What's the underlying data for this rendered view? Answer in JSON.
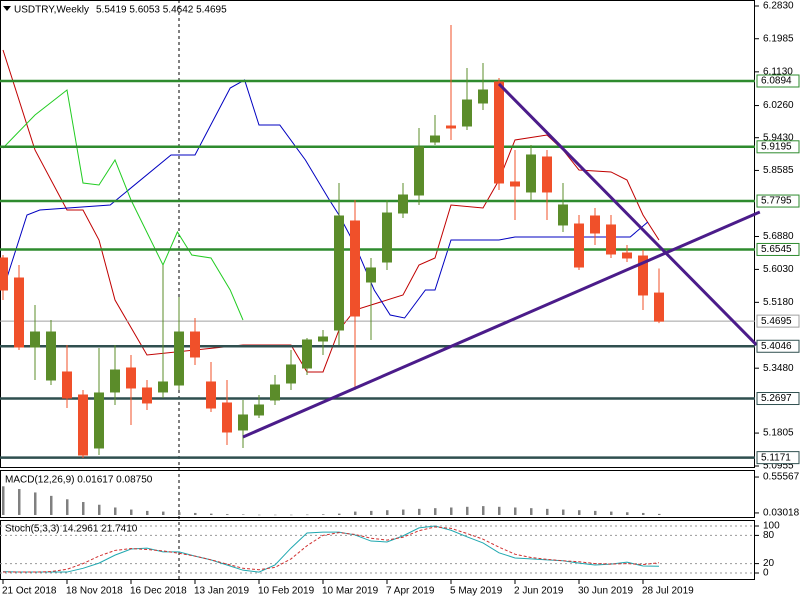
{
  "chart_data": [
    {
      "type": "candlestick",
      "title": "USDTRY,Weekly",
      "subtitle": "5.5419 5.6053 5.4642 5.4695",
      "categories": [
        "21 Oct 2018",
        null,
        null,
        null,
        "18 Nov 2018",
        null,
        null,
        null,
        "16 Dec 2018",
        null,
        null,
        null,
        "13 Jan 2019",
        null,
        null,
        null,
        "10 Feb 2019",
        null,
        null,
        null,
        "10 Mar 2019",
        null,
        null,
        null,
        "7 Apr 2019",
        null,
        null,
        null,
        "5 May 2019",
        null,
        null,
        null,
        "2 Jun 2019",
        null,
        null,
        null,
        "30 Jun 2019",
        null,
        null,
        null,
        "28 Jul 2019",
        null
      ],
      "open": [
        5.6325,
        5.5808,
        5.4027,
        5.3175,
        5.3382,
        5.2788,
        5.142,
        5.2866,
        5.3485,
        5.2969,
        5.2866,
        5.3046,
        5.4414,
        5.3124,
        5.2582,
        5.1885,
        5.2272,
        5.2659,
        5.3098,
        5.3485,
        5.4182,
        5.4466,
        5.728,
        5.5705,
        5.6221,
        5.7486,
        5.7951,
        5.9319,
        5.9732,
        5.9732,
        6.0326,
        6.0868,
        5.8287,
        5.8029,
        5.8932,
        5.7177,
        5.7202,
        5.7409,
        5.7177,
        5.6454,
        5.6376,
        5.5419
      ],
      "high": [
        5.6402,
        5.6144,
        5.5111,
        5.4724,
        5.4079,
        5.2917,
        5.4001,
        5.4079,
        5.3821,
        5.3175,
        5.6144,
        5.5318,
        5.4776,
        5.364,
        5.3175,
        5.2659,
        5.2788,
        5.3304,
        5.395,
        5.426,
        5.4466,
        5.8261,
        5.7822,
        5.6325,
        5.7822,
        5.8261,
        5.9681,
        6.0016,
        6.234,
        6.123,
        6.1359,
        6.0971,
        5.9113,
        5.9242,
        5.9113,
        5.8261,
        5.7435,
        5.7615,
        5.7435,
        5.666,
        5.6531,
        5.6053
      ],
      "low": [
        5.524,
        5.395,
        5.3175,
        5.3046,
        5.2452,
        5.1162,
        5.1239,
        5.253,
        5.2014,
        5.2401,
        5.2711,
        5.2917,
        5.3563,
        5.2349,
        5.1497,
        5.142,
        5.2194,
        5.253,
        5.2917,
        5.3304,
        5.3821,
        5.4079,
        5.2917,
        5.4208,
        5.6015,
        5.7357,
        5.7693,
        5.9242,
        5.9371,
        5.9629,
        6.0145,
        5.808,
        5.7306,
        5.7822,
        5.7306,
        5.6996,
        5.6015,
        5.666,
        5.6325,
        5.6221,
        5.4982,
        5.4642
      ],
      "close": [
        5.5499,
        5.4027,
        5.4414,
        5.4414,
        5.2711,
        5.1239,
        5.284,
        5.3433,
        5.2969,
        5.2582,
        5.3124,
        5.4414,
        5.3769,
        5.2452,
        5.1833,
        5.2272,
        5.253,
        5.3046,
        5.3563,
        5.4208,
        5.4285,
        5.7409,
        5.4827,
        5.6067,
        5.7486,
        5.7951,
        5.919,
        5.9474,
        5.9681,
        6.0403,
        6.0662,
        5.8261,
        5.8183,
        5.8984,
        5.8029,
        5.7693,
        5.6092,
        5.697,
        5.6428,
        5.6325,
        5.537,
        5.4695
      ],
      "up_color": "#5b8c2a",
      "down_color": "#f0502a",
      "ylim": [
        5.0955,
        6.283
      ],
      "yticks": [
        {
          "value": 6.283,
          "label": "6.2830"
        },
        6.1985,
        {
          "value": 6.113,
          "label": "6.1130"
        },
        {
          "value": 6.026,
          "label": "6.0260"
        },
        {
          "value": 5.943,
          "label": "5.9430"
        },
        5.8585,
        {
          "value": 5.688,
          "label": "5.6880"
        },
        {
          "value": 5.603,
          "label": "5.6030"
        },
        {
          "value": 5.518,
          "label": "5.5180"
        },
        {
          "value": 5.348,
          "label": "5.3480"
        },
        5.1805,
        5.0955
      ],
      "levels": [
        6.0894,
        5.9195,
        5.7795,
        5.6545,
        5.4046,
        5.2697,
        5.1171
      ],
      "level_colors": [
        "#2e8b2e",
        "#2e8b2e",
        "#2e8b2e",
        "#2e8b2e",
        "#2f4f4f",
        "#2f4f4f",
        "#2f4f4f"
      ],
      "last_price": 5.4695,
      "last_color": "#a0a0a0",
      "lines": [
        {
          "color": "#c00000",
          "x": [
            0,
            2,
            4,
            5,
            6,
            7,
            9,
            15,
            18,
            19,
            20,
            21,
            22,
            25,
            26,
            27,
            28,
            30,
            31,
            32,
            34,
            35,
            36,
            38,
            39,
            40,
            41
          ],
          "values": [
            6.1694,
            5.9113,
            5.7564,
            5.7564,
            5.6789,
            5.524,
            5.3821,
            5.4079,
            5.4079,
            5.3382,
            5.3382,
            5.4466,
            5.4982,
            5.537,
            5.6144,
            5.6325,
            5.7693,
            5.7615,
            5.8338,
            5.9371,
            5.95,
            5.9113,
            5.8596,
            5.8545,
            5.8338,
            5.7435,
            5.6789
          ]
        },
        {
          "color": "#0000c0",
          "x": [
            0,
            1.5,
            2.3,
            6.7,
            10.5,
            12,
            14.2,
            15.1,
            16,
            17.3,
            18.9,
            20.4,
            21,
            22,
            23.2,
            24.2,
            25.1,
            26.4,
            27,
            28,
            31,
            32,
            39.2,
            40.3
          ],
          "values": [
            5.5499,
            5.7435,
            5.7564,
            5.7693,
            5.8984,
            5.8984,
            6.0713,
            6.092,
            5.9758,
            5.9758,
            5.8855,
            5.7822,
            5.7435,
            5.666,
            5.5499,
            5.4853,
            5.4776,
            5.5499,
            5.5499,
            5.6789,
            5.6789,
            5.6867,
            5.6867,
            5.7254
          ]
        },
        {
          "color": "#22cc22",
          "x": [
            0,
            2,
            4,
            5,
            6,
            7,
            8,
            10,
            10.9,
            11.8,
            13,
            14.2,
            15
          ],
          "values": [
            5.9164,
            6.0016,
            6.0662,
            5.8261,
            5.8209,
            5.8855,
            5.7822,
            5.6144,
            5.6996,
            5.6402,
            5.6325,
            5.5499,
            5.4724
          ]
        }
      ],
      "trendlines": [
        {
          "color": "#4b1c8a",
          "x": [
            15,
            47.3
          ],
          "values": [
            5.1704,
            5.7512
          ]
        },
        {
          "color": "#4b1c8a",
          "x": [
            31,
            47.1
          ],
          "values": [
            6.0817,
            5.4079
          ]
        }
      ]
    },
    {
      "type": "bar",
      "title": "MACD(12,26,9) 0.01617 0.08750",
      "values": [
        0.42,
        0.38,
        0.33,
        0.28,
        0.23,
        0.19,
        0.15,
        0.11,
        0.08,
        0.06,
        0.05,
        0.04,
        0.03,
        0.02,
        0.012,
        0.008,
        0.004,
        0.004,
        0.004,
        0.006,
        0.01,
        0.02,
        0.05,
        0.06,
        0.07,
        0.08,
        0.09,
        0.1,
        0.11,
        0.12,
        0.13,
        0.12,
        0.11,
        0.1,
        0.09,
        0.08,
        0.07,
        0.06,
        0.05,
        0.04,
        0.03,
        0.01617
      ],
      "color": "#808080",
      "ylim": [
        0,
        0.6
      ],
      "yticks": [
        0.55567,
        0.03018
      ]
    },
    {
      "type": "line",
      "title": "Stoch(5,3,3) 14.2961 21.7410",
      "series": [
        {
          "color": "#20a8b0",
          "dashed": false,
          "values": [
            3,
            2,
            2,
            2,
            2,
            10,
            21,
            38,
            51,
            53,
            45,
            45,
            36,
            28,
            17,
            6,
            2,
            17,
            53,
            85,
            87,
            87,
            81,
            68,
            66,
            79,
            96,
            100,
            91,
            77,
            64,
            43,
            32,
            30,
            28,
            26,
            21,
            17,
            19,
            23,
            15,
            14.2961
          ]
        },
        {
          "color": "#d03030",
          "dashed": true,
          "values": [
            2,
            2,
            2,
            3,
            8,
            20,
            36,
            48,
            52,
            50,
            47,
            42,
            36,
            28,
            19,
            10,
            7,
            12,
            30,
            58,
            80,
            86,
            82,
            74,
            70,
            76,
            90,
            98,
            95,
            84,
            72,
            55,
            40,
            33,
            29,
            26,
            24,
            20,
            19,
            20,
            18,
            21.741
          ]
        }
      ],
      "ylim": [
        0,
        100
      ],
      "yticks": [
        100,
        80,
        20,
        0
      ]
    }
  ]
}
